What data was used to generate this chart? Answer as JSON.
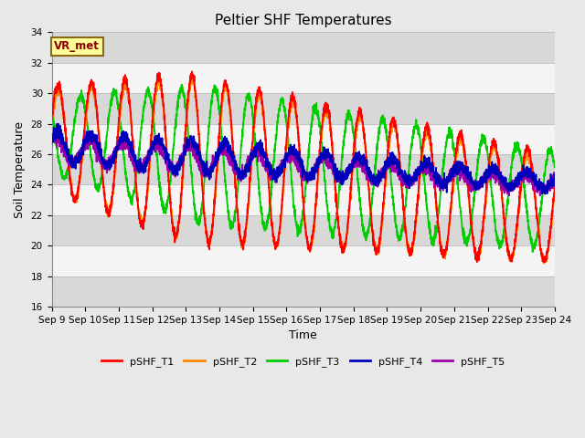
{
  "title": "Peltier SHF Temperatures",
  "xlabel": "Time",
  "ylabel": "Soil Temperature",
  "xlim": [
    0,
    15
  ],
  "ylim": [
    16,
    34
  ],
  "yticks": [
    16,
    18,
    20,
    22,
    24,
    26,
    28,
    30,
    32,
    34
  ],
  "xtick_labels": [
    "Sep 9",
    "Sep 10",
    "Sep 11",
    "Sep 12",
    "Sep 13",
    "Sep 14",
    "Sep 15",
    "Sep 16",
    "Sep 17",
    "Sep 18",
    "Sep 19",
    "Sep 20",
    "Sep 21",
    "Sep 22",
    "Sep 23",
    "Sep 24"
  ],
  "annotation_text": "VR_met",
  "annotation_color": "#8B0000",
  "annotation_bg": "#FFFF99",
  "annotation_edge": "#8B6914",
  "series_colors": [
    "#FF0000",
    "#FF8800",
    "#00CC00",
    "#0000BB",
    "#9900AA"
  ],
  "series_names": [
    "pSHF_T1",
    "pSHF_T2",
    "pSHF_T3",
    "pSHF_T4",
    "pSHF_T5"
  ],
  "background_color": "#E8E8E8",
  "plot_bg_stripe_dark": "#D8D8D8",
  "plot_bg_stripe_light": "#F4F4F4",
  "title_fontsize": 11,
  "axis_label_fontsize": 9,
  "tick_fontsize": 7.5
}
